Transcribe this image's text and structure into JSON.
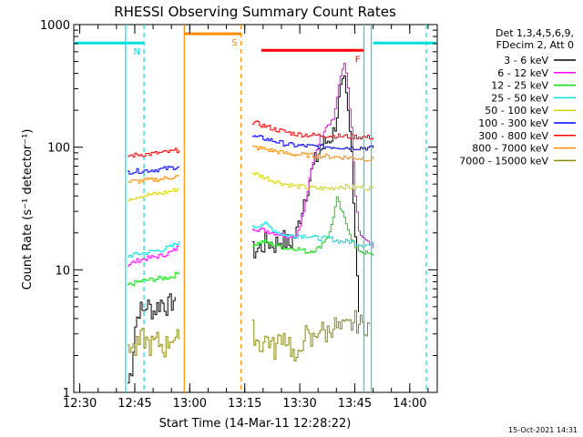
{
  "chart_data": {
    "type": "line",
    "title": "RHESSI Observing Summary Count Rates",
    "xlabel_prefix": "Start Time (",
    "xlabel_date": "14-Mar-11 12:28:22",
    "xlabel_suffix": ")",
    "ylabel": "Count Rate (s⁻¹ detector⁻¹)",
    "footer": "15-Oct-2021 14:31",
    "y_scale": "log",
    "ylim": [
      1,
      1000
    ],
    "xlim": [
      "12:28:22",
      "14:07:30"
    ],
    "x_ticks": [
      "12:30",
      "12:45",
      "13:00",
      "13:15",
      "13:30",
      "13:45",
      "14:00"
    ],
    "y_ticks": [
      {
        "value": 1,
        "label": "1"
      },
      {
        "value": 10,
        "label": "10"
      },
      {
        "value": 100,
        "label": "100"
      },
      {
        "value": 1000,
        "label": "1000"
      }
    ],
    "legend_position": "top-right",
    "legend_header": [
      "Det 1,3,4,5,6,9,",
      "FDecim 2, Att 0"
    ],
    "flags": [
      {
        "label": "N",
        "color": "#00e0e0",
        "segments": [
          [
            "12:28:22",
            "12:47:30"
          ],
          [
            "13:50:00",
            "14:07:30"
          ]
        ],
        "level": 0.95
      },
      {
        "label": "S",
        "color": "#ff8c00",
        "segments": [
          [
            "12:58:30",
            "13:14:00"
          ]
        ],
        "level": 0.975
      },
      {
        "label": "F",
        "color": "#ff0000",
        "segments": [
          [
            "13:19:30",
            "13:47:30"
          ]
        ],
        "level": 0.93
      }
    ],
    "vlines": [
      {
        "t": "12:42:30",
        "color": "#00e0e0",
        "dash": false
      },
      {
        "t": "12:47:30",
        "color": "#00e0e0",
        "dash": true
      },
      {
        "t": "12:58:30",
        "color": "#ff8c00",
        "dash": false
      },
      {
        "t": "13:14:00",
        "color": "#ff8c00",
        "dash": true
      },
      {
        "t": "13:47:30",
        "color": "#00e0e0",
        "dash": false
      },
      {
        "t": "13:49:30",
        "color": "#00e0e0",
        "dash": false
      },
      {
        "t": "14:04:30",
        "color": "#00e0e0",
        "dash": true
      }
    ],
    "series": [
      {
        "name": "3 - 6 keV",
        "color": "#000000",
        "segments": [
          {
            "x": [
              "12:43:00",
              "12:44:00",
              "12:45:00",
              "12:46:00",
              "12:47:00",
              "12:48:00",
              "12:50:00",
              "12:52:00",
              "12:54:00",
              "12:56:00"
            ],
            "y": [
              1.2,
              1.6,
              3.5,
              4.8,
              4.5,
              5.2,
              4.6,
              5.5,
              5.0,
              6.0
            ]
          },
          {
            "x": [
              "13:17:00",
              "13:19:00",
              "13:21:00",
              "13:23:00",
              "13:25:00",
              "13:27:00",
              "13:29:00",
              "13:31:00",
              "13:33:00",
              "13:35:00",
              "13:37:00",
              "13:39:00",
              "13:41:00",
              "13:42:00",
              "13:43:00",
              "13:44:00",
              "13:45:00",
              "13:46:00"
            ],
            "y": [
              14,
              15,
              17,
              16,
              18,
              16,
              20,
              38,
              62,
              90,
              110,
              130,
              280,
              320,
              180,
              90,
              20,
              4.5
            ]
          }
        ]
      },
      {
        "name": "6 - 12 keV",
        "color": "#ff00ff",
        "segments": [
          {
            "x": [
              "12:43:00",
              "12:46:00",
              "12:49:00",
              "12:52:00",
              "12:55:00",
              "12:57:00"
            ],
            "y": [
              11,
              12,
              12.5,
              13,
              14,
              15.5
            ]
          },
          {
            "x": [
              "13:17:00",
              "13:20:00",
              "13:23:00",
              "13:26:00",
              "13:29:00",
              "13:31:00",
              "13:33:00",
              "13:35:00",
              "13:37:00",
              "13:39:00",
              "13:41:00",
              "13:42:00",
              "13:43:00",
              "13:44:00",
              "13:45:00",
              "13:46:00",
              "13:48:00",
              "13:50:00"
            ],
            "y": [
              22,
              21,
              20,
              19,
              19,
              30,
              65,
              110,
              150,
              170,
              380,
              500,
              300,
              140,
              40,
              20,
              17,
              15
            ]
          }
        ]
      },
      {
        "name": "12 - 25 keV",
        "color": "#00e000",
        "segments": [
          {
            "x": [
              "12:43:00",
              "12:46:00",
              "12:49:00",
              "12:52:00",
              "12:55:00",
              "12:57:00"
            ],
            "y": [
              7.5,
              8.0,
              8.3,
              8.5,
              8.8,
              9.5
            ]
          },
          {
            "x": [
              "13:17:00",
              "13:20:00",
              "13:23:00",
              "13:26:00",
              "13:29:00",
              "13:32:00",
              "13:35:00",
              "13:38:00",
              "13:40:00",
              "13:42:00",
              "13:43:00",
              "13:45:00",
              "13:47:00",
              "13:50:00"
            ],
            "y": [
              16,
              17,
              16,
              15,
              15,
              14,
              15,
              20,
              38,
              26,
              22,
              15,
              14,
              13
            ]
          }
        ]
      },
      {
        "name": "25 - 50 keV",
        "color": "#00e0e0",
        "segments": [
          {
            "x": [
              "12:43:00",
              "12:46:00",
              "12:49:00",
              "12:52:00",
              "12:55:00",
              "12:57:00"
            ],
            "y": [
              13,
              13.5,
              14,
              14.5,
              15.5,
              17
            ]
          },
          {
            "x": [
              "13:17:00",
              "13:20:00",
              "13:23:00",
              "13:26:00",
              "13:29:00",
              "13:32:00",
              "13:35:00",
              "13:38:00",
              "13:41:00",
              "13:44:00",
              "13:47:00",
              "13:50:00"
            ],
            "y": [
              22,
              24,
              21,
              19,
              19,
              19,
              18,
              18,
              17,
              17,
              16,
              16
            ]
          }
        ]
      },
      {
        "name": "50 - 100 keV",
        "color": "#d8d800",
        "segments": [
          {
            "x": [
              "12:43:00",
              "12:46:00",
              "12:49:00",
              "12:52:00",
              "12:55:00",
              "12:57:00"
            ],
            "y": [
              38,
              40,
              41,
              42,
              44,
              46
            ]
          },
          {
            "x": [
              "13:17:00",
              "13:20:00",
              "13:23:00",
              "13:26:00",
              "13:29:00",
              "13:32:00",
              "13:35:00",
              "13:38:00",
              "13:41:00",
              "13:44:00",
              "13:47:00",
              "13:50:00"
            ],
            "y": [
              62,
              57,
              53,
              50,
              48,
              47,
              46,
              46,
              48,
              47,
              47,
              46
            ]
          }
        ]
      },
      {
        "name": "100 - 300 keV",
        "color": "#0000ff",
        "segments": [
          {
            "x": [
              "12:43:00",
              "12:46:00",
              "12:49:00",
              "12:52:00",
              "12:55:00",
              "12:57:00"
            ],
            "y": [
              63,
              64,
              65,
              66,
              68,
              70
            ]
          },
          {
            "x": [
              "13:17:00",
              "13:20:00",
              "13:23:00",
              "13:26:00",
              "13:29:00",
              "13:32:00",
              "13:35:00",
              "13:38:00",
              "13:41:00",
              "13:44:00",
              "13:47:00",
              "13:50:00"
            ],
            "y": [
              122,
              118,
              112,
              106,
              103,
              102,
              101,
              101,
              100,
              99,
              99,
              98
            ]
          }
        ]
      },
      {
        "name": "300 - 800 keV",
        "color": "#ff0000",
        "segments": [
          {
            "x": [
              "12:43:00",
              "12:46:00",
              "12:49:00",
              "12:52:00",
              "12:55:00",
              "12:57:00"
            ],
            "y": [
              85,
              87,
              88,
              90,
              92,
              95
            ]
          },
          {
            "x": [
              "13:17:00",
              "13:20:00",
              "13:23:00",
              "13:26:00",
              "13:29:00",
              "13:32:00",
              "13:35:00",
              "13:38:00",
              "13:41:00",
              "13:44:00",
              "13:47:00",
              "13:50:00"
            ],
            "y": [
              160,
              150,
              140,
              133,
              128,
              126,
              125,
              124,
              123,
              122,
              121,
              120
            ]
          }
        ]
      },
      {
        "name": "800 - 7000 keV",
        "color": "#ff8c00",
        "segments": [
          {
            "x": [
              "12:43:00",
              "12:46:00",
              "12:49:00",
              "12:52:00",
              "12:55:00",
              "12:57:00"
            ],
            "y": [
              52,
              53,
              54,
              55,
              57,
              58
            ]
          },
          {
            "x": [
              "13:17:00",
              "13:20:00",
              "13:23:00",
              "13:26:00",
              "13:29:00",
              "13:32:00",
              "13:35:00",
              "13:38:00",
              "13:41:00",
              "13:44:00",
              "13:47:00",
              "13:50:00"
            ],
            "y": [
              100,
              97,
              93,
              89,
              87,
              86,
              85,
              84,
              83,
              82,
              81,
              79
            ]
          }
        ]
      },
      {
        "name": "7000 - 15000 keV",
        "color": "#8b8b00",
        "segments": [
          {
            "x": [
              "12:43:00",
              "12:45:00",
              "12:47:00",
              "12:49:00",
              "12:51:00",
              "12:53:00",
              "12:55:00",
              "12:57:00"
            ],
            "y": [
              2.5,
              2.2,
              2.8,
              2.4,
              2.6,
              2.3,
              2.9,
              2.7
            ]
          },
          {
            "x": [
              "13:17:00",
              "13:19:00",
              "13:21:00",
              "13:23:00",
              "13:25:00",
              "13:27:00",
              "13:29:00",
              "13:31:00",
              "13:33:00",
              "13:35:00",
              "13:37:00",
              "13:39:00",
              "13:41:00",
              "13:43:00",
              "13:45:00",
              "13:47:00",
              "13:49:00"
            ],
            "y": [
              3.2,
              2.4,
              2.8,
              2.2,
              3.0,
              2.6,
              1.6,
              3.1,
              2.5,
              3.4,
              3.0,
              3.6,
              3.2,
              3.4,
              3.8,
              3.5,
              3.6
            ]
          }
        ]
      }
    ]
  }
}
